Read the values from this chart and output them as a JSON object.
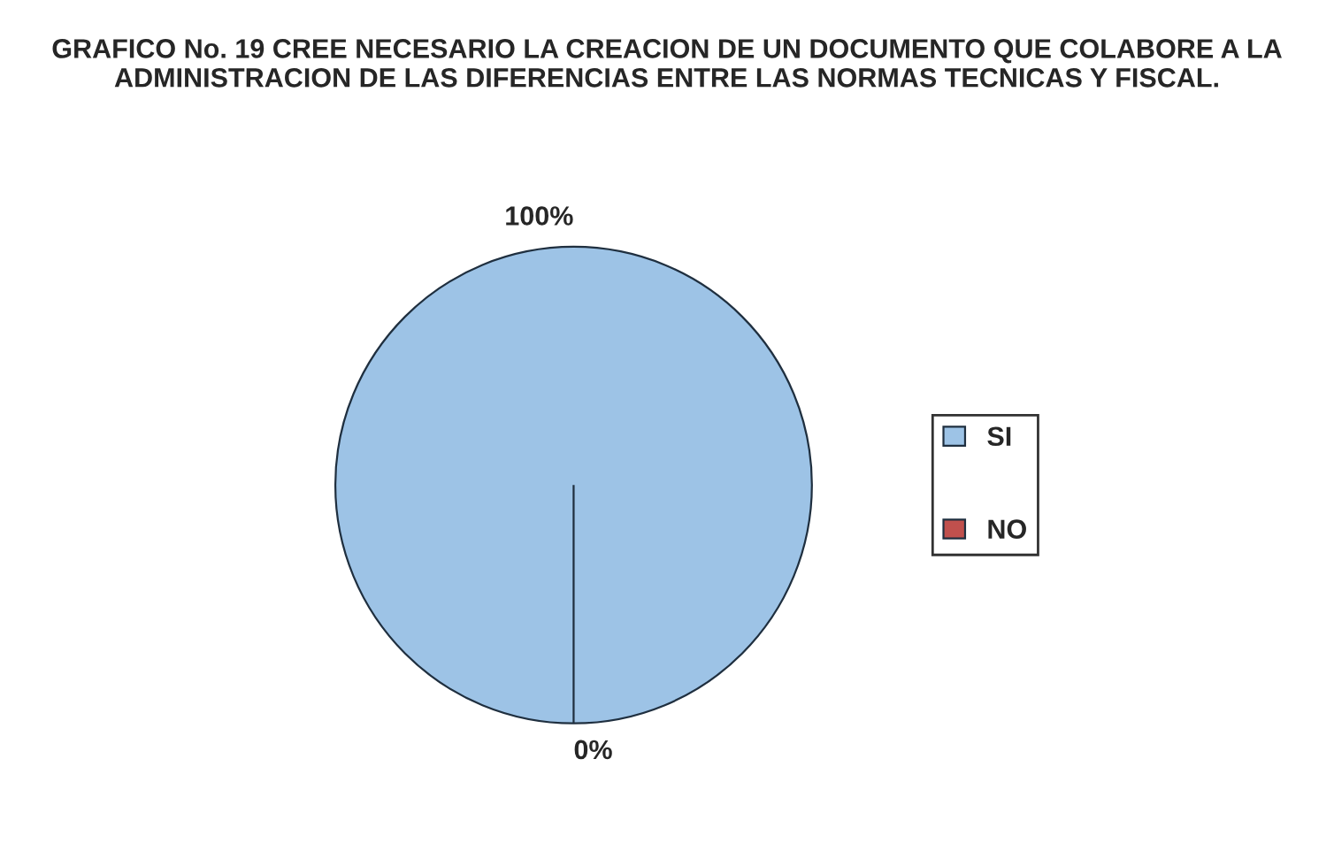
{
  "chart_data": {
    "type": "pie",
    "title": "GRAFICO No. 19 CREE NECESARIO LA CREACION DE UN DOCUMENTO QUE COLABORE A LA ADMINISTRACION DE LAS DIFERENCIAS ENTRE LAS NORMAS TECNICAS Y FISCAL.",
    "categories": [
      "SI",
      "NO"
    ],
    "values": [
      100,
      0
    ],
    "colors": [
      "#9dc3e6",
      "#c0504d"
    ],
    "value_labels": [
      "100%",
      "0%"
    ],
    "legend": "right"
  }
}
